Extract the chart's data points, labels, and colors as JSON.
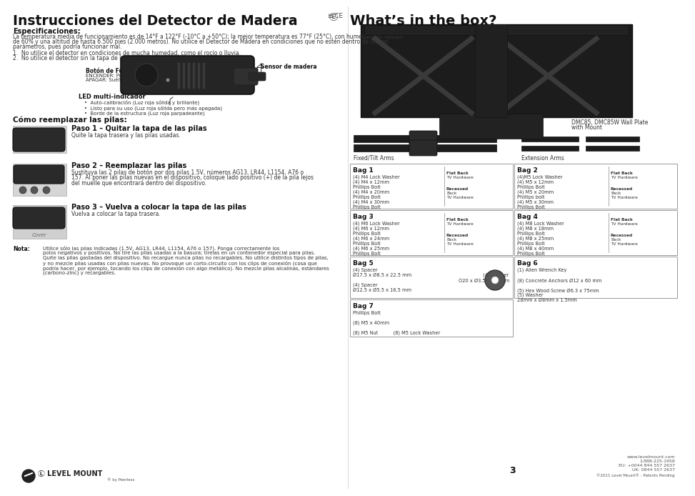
{
  "bg_color": "#ffffff",
  "left_title": "Instrucciones del Detector de Madera",
  "right_title": "What’s in the box?",
  "left_col": {
    "spec_title": "Especificaciones:",
    "spec_body1": "La temperatura media de funcionamiento es de 14°F a 122°F (-10°C a +50°C); la mejor temperatura es 77°F (25°C), con humedad por debajo",
    "spec_body2": "de 60% y una altitud de hasta 6.500 pies (2.000 metros). No utilice el Detector de Madera en condiciones que no estén dentro de dichos",
    "spec_body3": "parámetros, pues podría funcionar mal.",
    "list1": "1.  No utilice el detector en condiciones de mucha humedad, como el rocío o lluvia.",
    "list2": "2.  No utilice el detector sin la tapa de las pilas.",
    "button_title": "Botón de Funcionamiento",
    "button_body1": "ENCENDER: Presione y mantenga pulsado",
    "button_body2": "APAGAR: Suéltelo",
    "sensor_label": "Sensor de madera",
    "led_title": "LED multi-indicador",
    "led1": "Auto-calibración (Luz roja sólida y brillante)",
    "led2": "Listo para su uso (Luz roja sólida pero más apagada)",
    "led3": "Borde de la estructura (Luz roja parpadeante)",
    "replace_title": "Cómo reemplazar las pilas:",
    "step1_title": "Paso 1 – Quitar la tapa de las pilas",
    "step1_body": "Quite la tapa trasera y las pilas usadas.",
    "step2_title": "Paso 2 – Reemplazar las pilas",
    "step2_body1": "Sustituya las 2 pilas de botón por dos pilas 1.5V, números AG13, LR44, L1154, A76 o",
    "step2_body2": "157. Al poner las pilas nuevas en el dispositivo, coloque lado positivo (+) de la pila lejos",
    "step2_body3": "del muelle que encontrará dentro del dispositivo.",
    "step3_title": "Paso 3 – Vuelva a colocar la tapa de las pilas",
    "step3_body": "Vuelva a colocar la tapa trasera.",
    "nota_title": "Nota:",
    "nota_body1": "Utilice sólo las pilas indicadas (1.5V, AG13, LR44, L1154, A76 o 157). Ponga correctamente los",
    "nota_body2": "polos negativos y positivos. No tire las pilas usadas a la basura; tírelas en un contenedor especial para pilas.",
    "nota_body3": "Quite las pilas gastadas del dispositivo. No recargue nunca pilas no recargables. No utilice distintos tipos de pilas,",
    "nota_body4": "y no mezcle pilas usadas con pilas nuevas. No provoque un corto-circuito con los clips de conexión (cosa que",
    "nota_body5": "podría hacer, por ejemplo, tocando los clips de conexión con algo metálico). No mezcle pilas alcalinas, estándares",
    "nota_body6": "(carbono-zinc) y recargables."
  },
  "right_col": {
    "wall_plate_label1": "DMC85, DMC85W Wall Plate",
    "wall_plate_label2": "with Mount",
    "fixed_tilt_label": "Fixed/Tilt Arms",
    "extension_label": "Extension Arms",
    "bag1_title": "Bag 1",
    "bag1_l1": "(4) M4 Lock Washer",
    "bag1_l2": "(4) M4 x 12mm",
    "bag1_l3": "Phillips Bolt",
    "bag1_l4": "(4) M4 x 20mm",
    "bag1_l5": "Phillips Bolt",
    "bag1_l6": "(4) M4 x 30mm",
    "bag1_l7": "Phillips Bolt",
    "bag1_flat": "Flat Back",
    "bag1_flat2": "TV Hardware",
    "bag1_rec": "Recessed",
    "bag1_rec2": "Back",
    "bag1_rec3": "TV Hardware",
    "bag2_title": "Bag 2",
    "bag2_l1": "(4)M5 Lock Washer",
    "bag2_l2": "(4) M5 x 12mm",
    "bag2_l3": "Phillips Bolt",
    "bag2_l4": "(4) M5 x 20mm",
    "bag2_l5": "Phillips bolt",
    "bag2_l6": "(4) M5 x 30mm",
    "bag2_l7": "Phillips Bolt",
    "bag2_flat": "Flat Back",
    "bag2_flat2": "TV Hardware",
    "bag2_rec": "Recessed",
    "bag2_rec2": "Back",
    "bag2_rec3": "TV Hardware",
    "bag3_title": "Bag 3",
    "bag3_l1": "(4) M6 Lock Washer",
    "bag3_l2": "(4) M6 x 12mm",
    "bag3_l3": "Phillips Bolt",
    "bag3_l4": "(4) M6 x 24mm",
    "bag3_l5": "Phillips Bolt",
    "bag3_l6": "(4) M6 x 25mm",
    "bag3_l7": "Phillips Bolt",
    "bag3_flat": "Flat Back",
    "bag3_flat2": "TV Hardware",
    "bag3_rec": "Recessed",
    "bag3_rec2": "Back",
    "bag3_rec3": "TV Hardware",
    "bag4_title": "Bag 4",
    "bag4_l1": "(4) M8 Lock Washer",
    "bag4_l2": "(4) M8 x 18mm",
    "bag4_l3": "Phillips Bolt",
    "bag4_l4": "(4) M8 x 25mm",
    "bag4_l5": "Phillips Bolt",
    "bag4_l6": "(4) M8 x 40mm",
    "bag4_l7": "Phillips Bolt",
    "bag4_flat": "Flat Back",
    "bag4_flat2": "TV Hardware",
    "bag4_rec": "Recessed",
    "bag4_rec2": "Back",
    "bag4_rec3": "TV Hardware",
    "bag5_title": "Bag 5",
    "bag5_l1": "(4) Spacer",
    "bag5_l2": "Ø17.5 x Ø8.5 x 22.5 mm",
    "bag5_l3": "(4) Spacer",
    "bag5_l4": "Ø12.5 x Ø5.5 x 16.5 mm",
    "bag5_washer1": "(4) Washer",
    "bag5_washer2": "Ò20 x Ø3.5 x 1.0 mm",
    "bag6_title": "Bag 6",
    "bag6_l1": "(1) Allen Wrench Key",
    "bag6_l2": "(8) Concrete Anchors Ø12 x 60 mm",
    "bag6_l3": "(5) Hex Wood Screw Ø6.3 x 75mm",
    "bag6_l4": "(5) Washer",
    "bag6_l5": "28mm x Ø8mm x 1.5mm",
    "bag7_title": "Bag 7",
    "bag7_l1": "Phillips Bolt",
    "bag7_l2": "(8) M5 x 40mm",
    "bag7_l3": "(8) M5 Nut",
    "bag7_l4": "(8) M5 Lock Washer",
    "footer_url": "www.levelmount.com",
    "footer_p1": "1-888-225-1958",
    "footer_p2": "EU: +0044 844 557 2637",
    "footer_p3": "UK: 0844 557 2637",
    "footer_copy": "©2011 Level Mount® - Patents Pending",
    "page_num": "3",
    "logo_text": "LEVEL MOUNT"
  }
}
